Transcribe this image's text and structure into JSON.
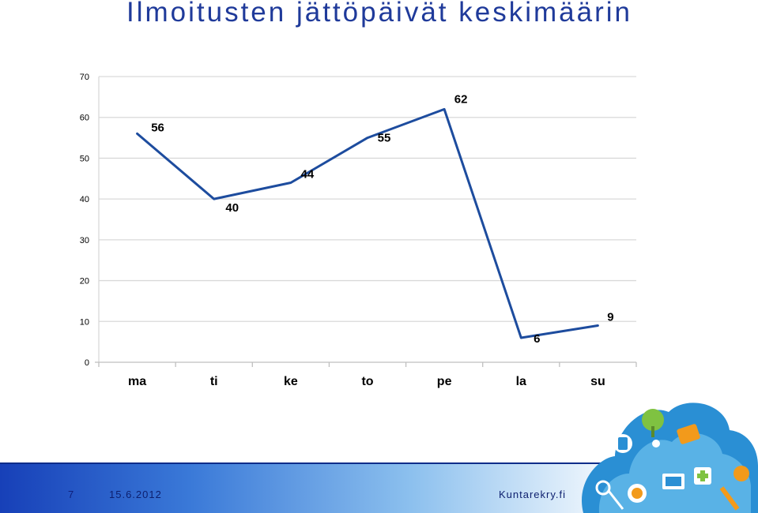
{
  "slide": {
    "title": "Ilmoitusten jättöpäivät keskimäärin",
    "page_number": "7",
    "date": "15.6.2012",
    "site": "Kuntarekry.fi"
  },
  "colors": {
    "title": "#1f3a9a",
    "line": "#1d4c9e",
    "grid": "#d9d9d9",
    "axis_text": "#000000"
  },
  "chart_data": {
    "type": "line",
    "categories": [
      "ma",
      "ti",
      "ke",
      "to",
      "pe",
      "la",
      "su"
    ],
    "series": [
      {
        "values": [
          56,
          40,
          44,
          55,
          62,
          6,
          9
        ]
      }
    ],
    "y_ticks": [
      "0",
      "10",
      "20",
      "30",
      "40",
      "50",
      "60",
      "70"
    ],
    "ylim": [
      0,
      70
    ],
    "grid": true,
    "legend": "none",
    "data_labels": [
      "56",
      "40",
      "44",
      "55",
      "62",
      "6",
      "9"
    ]
  }
}
